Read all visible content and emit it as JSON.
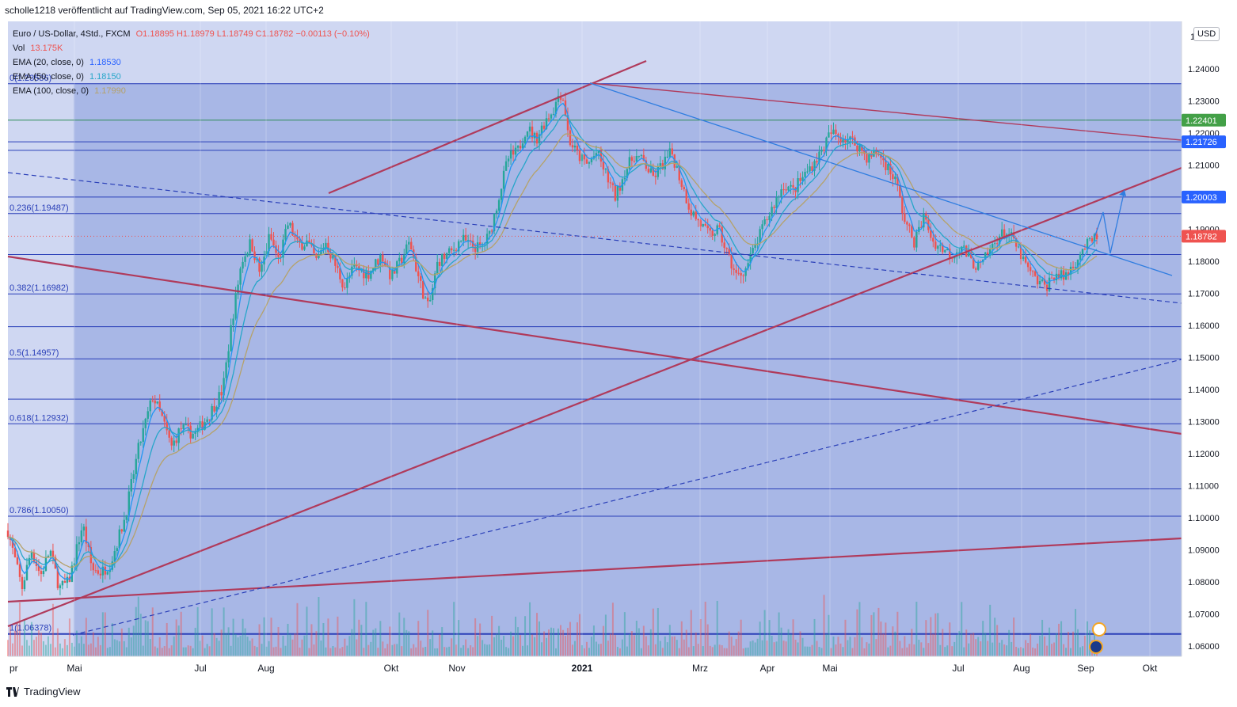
{
  "header": {
    "publisher": "scholle1218 veröffentlicht auf TradingView.com, Sep 05, 2021 16:22 UTC+2"
  },
  "legend": {
    "symbol": "Euro / US-Dollar, 4Std., FXCM",
    "ohlc": "O1.18895  H1.18979  L1.18749  C1.18782  −0.00113 (−0.10%)",
    "vol_label": "Vol",
    "vol_value": "13.175K",
    "ema20_label": "EMA (20, close, 0)",
    "ema20_value": "1.18530",
    "ema50_label": "EMA (50, close, 0)",
    "ema50_value": "1.18150",
    "ema100_label": "EMA (100, close, 0)",
    "ema100_value": "1.17990"
  },
  "currency_button": "USD",
  "footer": {
    "brand": "TradingView"
  },
  "colors": {
    "background_fill": "#a8b7e6",
    "left_fill": "#cfd7f2",
    "horizontal_line": "#2a3fb8",
    "trend_red": "#b03a5b",
    "trend_blue": "#2f7de0",
    "ema20": "#2196f3",
    "ema50": "#26a6c9",
    "ema100": "#b5a26a",
    "candle_up": "#26a69a",
    "candle_down": "#ef5350",
    "label_green": "#43a047",
    "label_blue": "#2962ff",
    "label_red": "#ef5350"
  },
  "chart_data": {
    "type": "candlestick",
    "symbol": "EURUSD",
    "timeframe": "4h",
    "y_axis": {
      "ylim": [
        1.056,
        1.242
      ],
      "ticks": [
        "1.24000",
        "1.23000",
        "1.22000",
        "1.21000",
        "1.20000",
        "1.19000",
        "1.18000",
        "1.17000",
        "1.16000",
        "1.15000",
        "1.14000",
        "1.13000",
        "1.12000",
        "1.11000",
        "1.10000",
        "1.09000",
        "1.08000",
        "1.07000",
        "1.06000"
      ],
      "top_partial_label": "1"
    },
    "x_axis": {
      "labels": [
        "pr",
        "Mai",
        "Jul",
        "Aug",
        "Okt",
        "Nov",
        "2021",
        "Mrz",
        "Apr",
        "Mai",
        "Jul",
        "Aug",
        "Sep",
        "Okt"
      ],
      "bold_label": "2021"
    },
    "price_labels": [
      {
        "text": "1.22401",
        "value": 1.22401,
        "style": "green"
      },
      {
        "text": "1.21726",
        "value": 1.21726,
        "style": "blue"
      },
      {
        "text": "1.20003",
        "value": 1.20003,
        "style": "blue"
      },
      {
        "text": "1.18782",
        "value": 1.18782,
        "style": "red"
      }
    ],
    "fib_levels": [
      {
        "text": "0(1.23536)",
        "value": 1.23536
      },
      {
        "text": "0.236(1.19487)",
        "value": 1.19487
      },
      {
        "text": "0.382(1.16982)",
        "value": 1.16982
      },
      {
        "text": "0.5(1.14957)",
        "value": 1.14957
      },
      {
        "text": "0.618(1.12932)",
        "value": 1.12932
      },
      {
        "text": "0.786(1.10050)",
        "value": 1.1005
      },
      {
        "text": "1(1.06378)",
        "value": 1.06378
      }
    ],
    "horizontal_levels": [
      1.23536,
      1.22401,
      1.21726,
      1.2146,
      1.20003,
      1.19487,
      1.1821,
      1.16982,
      1.1596,
      1.14957,
      1.137,
      1.12932,
      1.109,
      1.1005,
      1.06378
    ],
    "price_path": [
      [
        0,
        1.096
      ],
      [
        3,
        1.078
      ],
      [
        5,
        1.09
      ],
      [
        7,
        1.082
      ],
      [
        9,
        1.09
      ],
      [
        11,
        1.078
      ],
      [
        13,
        1.08
      ],
      [
        16,
        1.098
      ],
      [
        18,
        1.084
      ],
      [
        20,
        1.083
      ],
      [
        22,
        1.086
      ],
      [
        25,
        1.1
      ],
      [
        28,
        1.122
      ],
      [
        31,
        1.138
      ],
      [
        33,
        1.131
      ],
      [
        35,
        1.122
      ],
      [
        37,
        1.128
      ],
      [
        40,
        1.126
      ],
      [
        43,
        1.132
      ],
      [
        46,
        1.14
      ],
      [
        48,
        1.162
      ],
      [
        50,
        1.18
      ],
      [
        52,
        1.186
      ],
      [
        54,
        1.176
      ],
      [
        56,
        1.188
      ],
      [
        58,
        1.18
      ],
      [
        60,
        1.192
      ],
      [
        62,
        1.185
      ],
      [
        64,
        1.186
      ],
      [
        66,
        1.18
      ],
      [
        68,
        1.186
      ],
      [
        70,
        1.179
      ],
      [
        72,
        1.172
      ],
      [
        74,
        1.178
      ],
      [
        77,
        1.176
      ],
      [
        80,
        1.182
      ],
      [
        82,
        1.175
      ],
      [
        84,
        1.18
      ],
      [
        86,
        1.186
      ],
      [
        88,
        1.174
      ],
      [
        90,
        1.165
      ],
      [
        92,
        1.18
      ],
      [
        95,
        1.183
      ],
      [
        97,
        1.187
      ],
      [
        99,
        1.185
      ],
      [
        101,
        1.184
      ],
      [
        103,
        1.188
      ],
      [
        105,
        1.2
      ],
      [
        107,
        1.212
      ],
      [
        109,
        1.214
      ],
      [
        111,
        1.222
      ],
      [
        113,
        1.218
      ],
      [
        115,
        1.224
      ],
      [
        117,
        1.228
      ],
      [
        118,
        1.233
      ],
      [
        119,
        1.23
      ],
      [
        120,
        1.218
      ],
      [
        122,
        1.213
      ],
      [
        124,
        1.21
      ],
      [
        126,
        1.214
      ],
      [
        128,
        1.207
      ],
      [
        130,
        1.2
      ],
      [
        132,
        1.208
      ],
      [
        134,
        1.213
      ],
      [
        136,
        1.211
      ],
      [
        138,
        1.206
      ],
      [
        140,
        1.21
      ],
      [
        142,
        1.214
      ],
      [
        144,
        1.205
      ],
      [
        146,
        1.196
      ],
      [
        148,
        1.192
      ],
      [
        150,
        1.188
      ],
      [
        152,
        1.19
      ],
      [
        154,
        1.182
      ],
      [
        156,
        1.175
      ],
      [
        158,
        1.178
      ],
      [
        160,
        1.185
      ],
      [
        162,
        1.192
      ],
      [
        164,
        1.198
      ],
      [
        166,
        1.204
      ],
      [
        168,
        1.202
      ],
      [
        170,
        1.206
      ],
      [
        172,
        1.21
      ],
      [
        174,
        1.214
      ],
      [
        176,
        1.22
      ],
      [
        178,
        1.219
      ],
      [
        180,
        1.218
      ],
      [
        182,
        1.216
      ],
      [
        184,
        1.212
      ],
      [
        186,
        1.214
      ],
      [
        188,
        1.21
      ],
      [
        190,
        1.205
      ],
      [
        192,
        1.192
      ],
      [
        194,
        1.186
      ],
      [
        196,
        1.194
      ],
      [
        198,
        1.186
      ],
      [
        200,
        1.184
      ],
      [
        202,
        1.182
      ],
      [
        204,
        1.185
      ],
      [
        206,
        1.18
      ],
      [
        208,
        1.178
      ],
      [
        210,
        1.183
      ],
      [
        212,
        1.188
      ],
      [
        214,
        1.189
      ],
      [
        216,
        1.184
      ],
      [
        218,
        1.178
      ],
      [
        220,
        1.174
      ],
      [
        222,
        1.172
      ],
      [
        224,
        1.176
      ],
      [
        226,
        1.175
      ],
      [
        228,
        1.179
      ],
      [
        230,
        1.184
      ],
      [
        232,
        1.186
      ],
      [
        233,
        1.188
      ]
    ],
    "price_path_x_range": [
      0,
      233
    ],
    "annotations": [
      "Fibonacci retracement",
      "trend lines",
      "dashed trend lines",
      "projected path arrows"
    ]
  }
}
